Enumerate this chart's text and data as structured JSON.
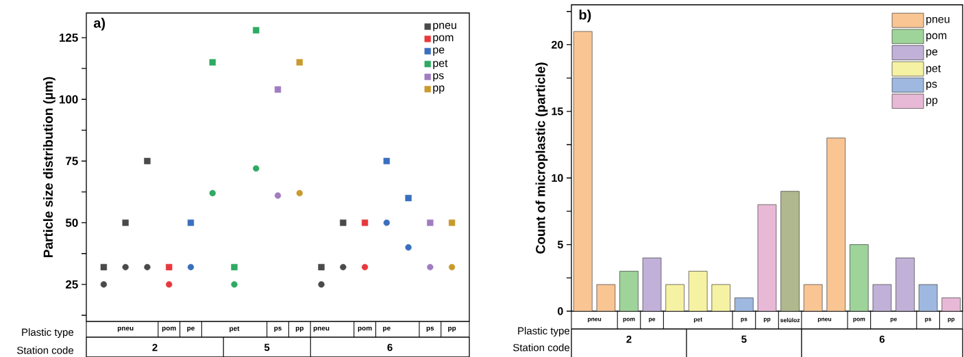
{
  "chart_data": [
    {
      "type": "scatter",
      "title": "a)",
      "ylabel": "Particle size distribution (µm)",
      "categories": [
        null,
        "pneu",
        null,
        "pom",
        "pe",
        null,
        "pet",
        null,
        "ps",
        "pp",
        "pneu",
        null,
        "pom",
        "pe",
        null,
        "ps",
        "pp"
      ],
      "ylim": [
        10,
        135
      ],
      "yticks": [
        {
          "value": 12.5,
          "label": null
        },
        25,
        {
          "value": 37.5,
          "label": null
        },
        50,
        {
          "value": 62.5,
          "label": null
        },
        75,
        {
          "value": 87.5,
          "label": null
        },
        100,
        {
          "value": 112.5,
          "label": null
        },
        125
      ],
      "legend": "top right",
      "series": [
        {
          "name": "pneu",
          "color": "#4a4a4a",
          "marker": "square",
          "values": [
            32,
            50,
            75,
            null,
            null,
            null,
            null,
            null,
            null,
            null,
            32,
            50,
            null,
            null,
            null,
            null,
            null
          ]
        },
        {
          "color": "#4a4a4a",
          "marker": "circle",
          "values": [
            25,
            32,
            32,
            null,
            null,
            null,
            null,
            null,
            null,
            null,
            25,
            32,
            null,
            null,
            null,
            null,
            null
          ]
        },
        {
          "name": "pom",
          "color": "#e8383d",
          "marker": "square",
          "values": [
            null,
            null,
            null,
            32,
            null,
            null,
            null,
            null,
            null,
            null,
            null,
            null,
            50,
            null,
            null,
            null,
            null
          ]
        },
        {
          "color": "#e8383d",
          "marker": "circle",
          "values": [
            null,
            null,
            null,
            25,
            null,
            null,
            null,
            null,
            null,
            null,
            null,
            null,
            32,
            null,
            null,
            null,
            null
          ]
        },
        {
          "name": "pe",
          "color": "#3a6fbf",
          "marker": "square",
          "values": [
            null,
            null,
            null,
            null,
            50,
            null,
            null,
            null,
            null,
            null,
            null,
            null,
            null,
            75,
            60,
            null,
            null
          ]
        },
        {
          "color": "#3a6fbf",
          "marker": "circle",
          "values": [
            null,
            null,
            null,
            null,
            32,
            null,
            null,
            null,
            null,
            null,
            null,
            null,
            null,
            50,
            40,
            null,
            null
          ]
        },
        {
          "name": "pet",
          "color": "#2eaa62",
          "marker": "square",
          "values": [
            null,
            null,
            null,
            null,
            null,
            115,
            32,
            128,
            null,
            null,
            null,
            null,
            null,
            null,
            null,
            null,
            null
          ]
        },
        {
          "color": "#2eaa62",
          "marker": "circle",
          "values": [
            null,
            null,
            null,
            null,
            null,
            62,
            25,
            72,
            null,
            null,
            null,
            null,
            null,
            null,
            null,
            null,
            null
          ]
        },
        {
          "name": "ps",
          "color": "#a07cc0",
          "marker": "square",
          "values": [
            null,
            null,
            null,
            null,
            null,
            null,
            null,
            null,
            104,
            null,
            null,
            null,
            null,
            null,
            null,
            50,
            null
          ]
        },
        {
          "color": "#a07cc0",
          "marker": "circle",
          "values": [
            null,
            null,
            null,
            null,
            null,
            null,
            null,
            null,
            61,
            null,
            null,
            null,
            null,
            null,
            null,
            32,
            null
          ]
        },
        {
          "name": "pp",
          "color": "#c99a2e",
          "marker": "square",
          "values": [
            null,
            null,
            null,
            null,
            null,
            null,
            null,
            null,
            null,
            115,
            null,
            null,
            null,
            null,
            null,
            null,
            50
          ]
        },
        {
          "color": "#c99a2e",
          "marker": "circle",
          "values": [
            null,
            null,
            null,
            null,
            null,
            null,
            null,
            null,
            null,
            62,
            null,
            null,
            null,
            null,
            null,
            null,
            32
          ]
        }
      ],
      "annotations": [
        "Plastic type",
        "Station code",
        "2",
        "5",
        "6"
      ]
    },
    {
      "type": "bar",
      "title": "b)",
      "ylabel": "Count of microplastic (particle)",
      "categories": [
        "pneu",
        "pom",
        "pe",
        "pet",
        "ps",
        "pp",
        "selüloz",
        "pneu",
        "pom",
        "pe",
        "ps",
        "pp"
      ],
      "ylim": [
        0,
        23
      ],
      "yticks": [
        0,
        {
          "value": 2.5,
          "label": null
        },
        5,
        {
          "value": 7.5,
          "label": null
        },
        10,
        {
          "value": 12.5,
          "label": null
        },
        15,
        {
          "value": 17.5,
          "label": null
        },
        20,
        {
          "value": 22.5,
          "label": null
        }
      ],
      "legend": "top right",
      "series": [
        {
          "name": "pneu",
          "color": "#f9c593",
          "values": [
            21,
            null,
            null,
            null,
            null,
            null,
            null,
            2,
            null,
            null,
            null,
            null
          ]
        },
        {
          "color": "#f9c593",
          "values": [
            2,
            null,
            null,
            null,
            null,
            null,
            null,
            13,
            null,
            null,
            null,
            null
          ]
        },
        {
          "name": "pom",
          "color": "#9ed49a",
          "values": [
            null,
            3,
            null,
            null,
            null,
            null,
            null,
            null,
            5,
            null,
            null,
            null
          ]
        },
        {
          "name": "pe",
          "color": "#c1b1d8",
          "values": [
            null,
            null,
            4,
            null,
            null,
            null,
            null,
            null,
            null,
            2,
            null,
            null
          ]
        },
        {
          "color": "#c1b1d8",
          "values": [
            null,
            null,
            null,
            null,
            null,
            null,
            null,
            null,
            null,
            4,
            null,
            null
          ]
        },
        {
          "name": "pet",
          "color": "#f6f2a3",
          "values": [
            null,
            null,
            null,
            2,
            null,
            null,
            null,
            null,
            null,
            null,
            null,
            null
          ]
        },
        {
          "color": "#f6f2a3",
          "values": [
            null,
            null,
            null,
            3,
            null,
            null,
            null,
            null,
            null,
            null,
            null,
            null
          ]
        },
        {
          "color": "#f6f2a3",
          "values": [
            null,
            null,
            null,
            2,
            null,
            null,
            null,
            null,
            null,
            null,
            null,
            null
          ]
        },
        {
          "name": "ps",
          "color": "#9fb8df",
          "values": [
            null,
            null,
            null,
            null,
            1,
            null,
            null,
            null,
            null,
            null,
            2,
            null
          ]
        },
        {
          "name": "pp",
          "color": "#e8b9d6",
          "values": [
            null,
            null,
            null,
            null,
            null,
            8,
            null,
            null,
            null,
            null,
            null,
            1
          ]
        },
        {
          "color": "#b0b98e",
          "values": [
            null,
            null,
            null,
            null,
            null,
            null,
            9,
            null,
            null,
            null,
            null,
            null
          ]
        }
      ],
      "annotations": [
        "Plastic type",
        "Station code",
        "2",
        "5",
        "6"
      ]
    }
  ]
}
